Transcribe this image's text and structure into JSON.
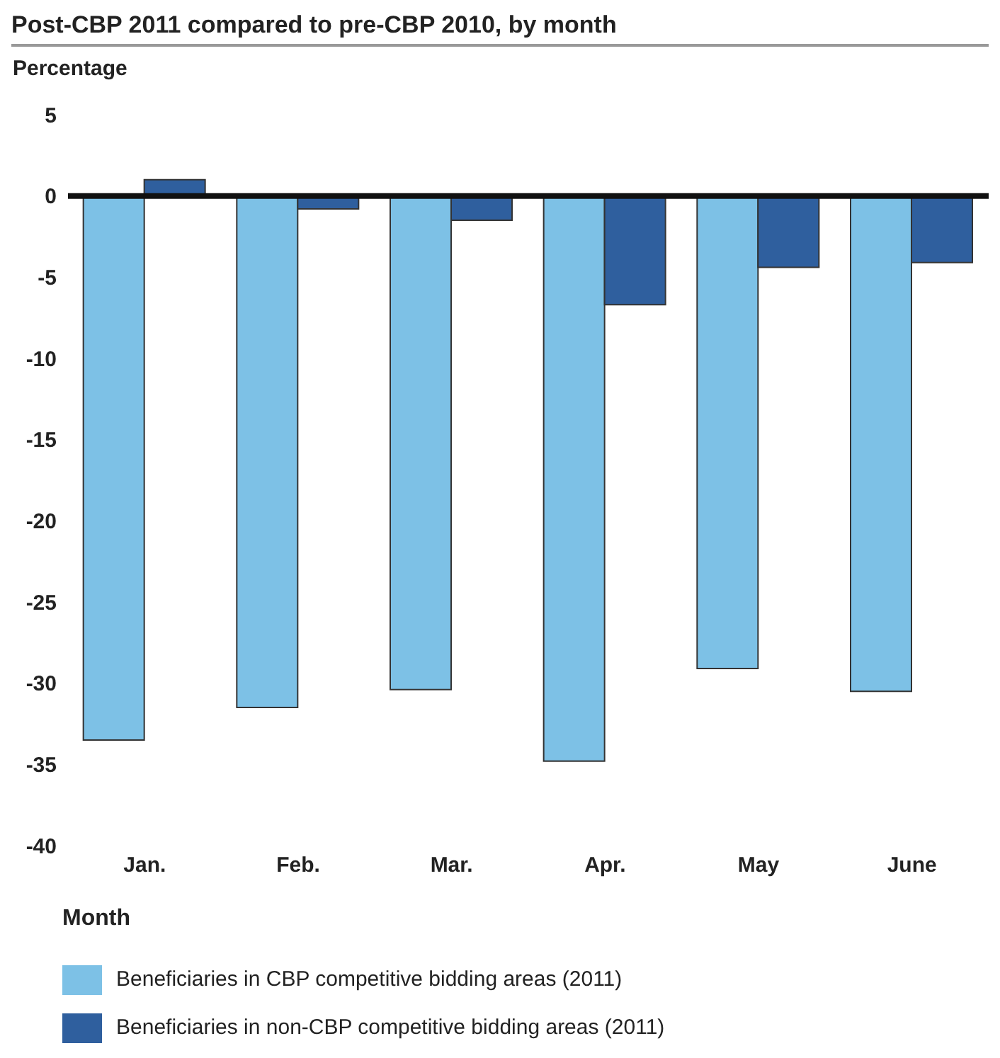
{
  "chart_data": {
    "type": "bar",
    "title": "Post-CBP 2011 compared to pre-CBP 2010, by month",
    "ylabel": "Percentage",
    "xlabel": "Month",
    "categories": [
      "Jan.",
      "Feb.",
      "Mar.",
      "Apr.",
      "May",
      "June"
    ],
    "series": [
      {
        "name": "Beneficiaries in CBP competitive bidding areas (2011)",
        "color": "#7dc1e6",
        "values": [
          -33.5,
          -31.5,
          -30.4,
          -34.8,
          -29.1,
          -30.5
        ]
      },
      {
        "name": "Beneficiaries in non-CBP competitive bidding areas (2011)",
        "color": "#2f5f9e",
        "values": [
          1.0,
          -0.8,
          -1.5,
          -6.7,
          -4.4,
          -4.1
        ]
      }
    ],
    "ylim": [
      -40,
      5
    ],
    "yticks": [
      5,
      0,
      -5,
      -10,
      -15,
      -20,
      -25,
      -30,
      -35,
      -40
    ],
    "legend": "bottom"
  }
}
